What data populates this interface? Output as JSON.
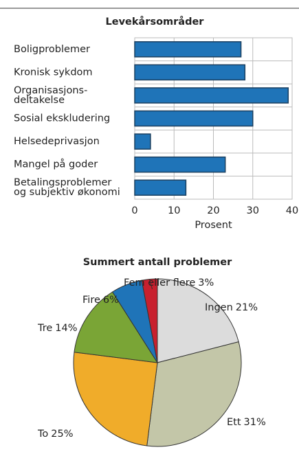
{
  "chart_data": [
    {
      "type": "hbar",
      "title": "Levekårsområder",
      "categories": [
        "Boligproblemer",
        "Kronisk sykdom",
        "Organisasjons-\ndeltakelse",
        "Sosial ekskludering",
        "Helsedeprivasjon",
        "Mangel på goder",
        "Betalingsproblemer\nog subjektiv økonomi"
      ],
      "values": [
        27,
        28,
        39,
        30,
        4,
        23,
        13
      ],
      "color": "#1f74b8",
      "xlim": [
        0,
        40
      ],
      "xticks": [
        0,
        10,
        20,
        30,
        40
      ],
      "xlabel": "Prosent",
      "grid": true
    },
    {
      "type": "pie",
      "title": "Summert antall problemer",
      "categories": [
        "Ingen",
        "Ett",
        "To",
        "Tre",
        "Fire",
        "Fem eller flere"
      ],
      "values": [
        21,
        31,
        25,
        14,
        6,
        3
      ],
      "value_labels": [
        "21%",
        "31%",
        "25%",
        "14%",
        "6%",
        "3%"
      ],
      "colors": [
        "#dcdcdc",
        "#c3c6a8",
        "#f0ac2a",
        "#7aa536",
        "#1f74b8",
        "#c8202e"
      ]
    }
  ]
}
